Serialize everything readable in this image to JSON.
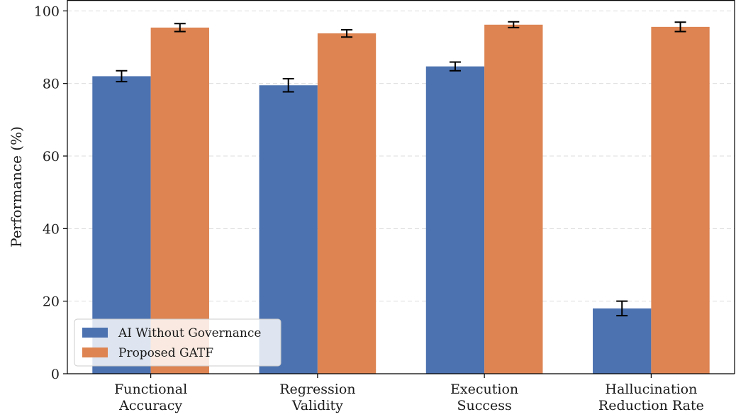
{
  "chart_data": {
    "type": "bar",
    "title": "",
    "xlabel": "",
    "ylabel": "Performance (%)",
    "ylim": [
      0,
      103
    ],
    "yticks": [
      0,
      20,
      40,
      60,
      80,
      100
    ],
    "grid": "horizontal-dashed",
    "legend_position": "lower-left",
    "categories": [
      [
        "Functional",
        "Accuracy"
      ],
      [
        "Regression",
        "Validity"
      ],
      [
        "Execution",
        "Success"
      ],
      [
        "Hallucination",
        "Reduction Rate"
      ]
    ],
    "series": [
      {
        "name": "AI Without Governance",
        "color": "#4c72b0",
        "values": [
          82.0,
          79.5,
          84.7,
          18.0
        ],
        "errors": [
          1.5,
          1.8,
          1.2,
          2.0
        ]
      },
      {
        "name": "Proposed GATF",
        "color": "#dd8452",
        "values": [
          95.4,
          93.8,
          96.2,
          95.6
        ],
        "errors": [
          1.1,
          1.0,
          0.8,
          1.3
        ]
      }
    ]
  }
}
